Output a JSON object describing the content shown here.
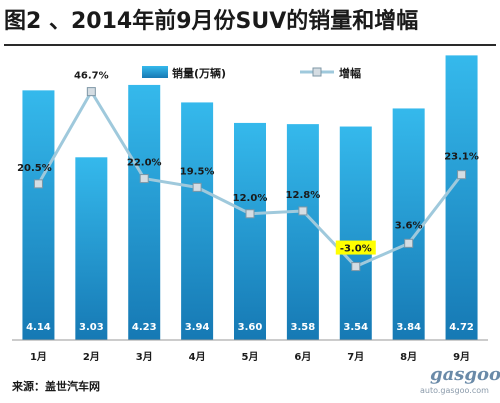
{
  "title": "图2 、2014年前9月份SUV的销量和增幅",
  "source": "来源：盖世汽车网",
  "watermark": {
    "brand": "gasgoo",
    "url": "auto.gasgoo.com"
  },
  "colors": {
    "bar_top": "#35b9ec",
    "bar_bottom": "#1679b4",
    "line": "#9fc9dc",
    "marker": "#d5dde3",
    "highlight_label": "#ffff00"
  },
  "chart_data": {
    "type": "bar",
    "categories": [
      "1月",
      "2月",
      "3月",
      "4月",
      "5月",
      "6月",
      "7月",
      "8月",
      "9月"
    ],
    "series": [
      {
        "name": "销量(万辆)",
        "type": "bar",
        "values": [
          4.14,
          3.03,
          4.23,
          3.94,
          3.6,
          3.58,
          3.54,
          3.84,
          4.72
        ],
        "labels": [
          "4.14",
          "3.03",
          "4.23",
          "3.94",
          "3.60",
          "3.58",
          "3.54",
          "3.84",
          "4.72"
        ]
      },
      {
        "name": "增幅",
        "type": "line",
        "values": [
          20.5,
          46.7,
          22.0,
          19.5,
          12.0,
          12.8,
          -3.0,
          3.6,
          23.1
        ],
        "labels": [
          "20.5%",
          "46.7%",
          "22.0%",
          "19.5%",
          "12.0%",
          "12.8%",
          "-3.0%",
          "3.6%",
          "23.1%"
        ]
      }
    ],
    "legend": {
      "position": "top"
    },
    "grid": false
  }
}
